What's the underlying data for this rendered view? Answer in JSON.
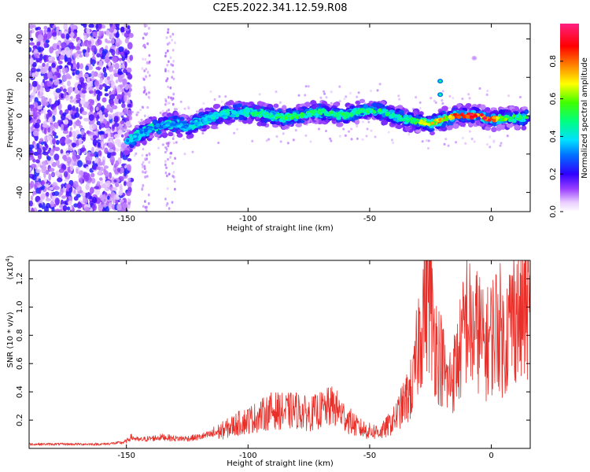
{
  "title": "C2E5.2022.341.12.59.R08",
  "chart_data": [
    {
      "type": "heatmap",
      "xlabel": "Height of straight line (km)",
      "ylabel": "Frequency (Hz)",
      "xlim": [
        -190,
        16
      ],
      "ylim": [
        -50,
        48
      ],
      "xticks": [
        -150,
        -100,
        -50,
        0
      ],
      "yticks": [
        -40,
        -20,
        0,
        20,
        40
      ],
      "colorbar": {
        "label": "Normalized spectral amplitude",
        "range": [
          0.0,
          1.0
        ],
        "ticks": [
          0.0,
          0.2,
          0.4,
          0.6,
          0.8
        ],
        "colormap": "rainbow (white-purple-blue-cyan-green-yellow-red-pink)"
      },
      "ridge": {
        "x": [
          -150,
          -145,
          -140,
          -135,
          -130,
          -125,
          -120,
          -115,
          -110,
          -105,
          -100,
          -95,
          -90,
          -85,
          -80,
          -75,
          -70,
          -65,
          -60,
          -55,
          -50,
          -45,
          -40,
          -35,
          -30,
          -25,
          -20,
          -15,
          -10,
          -5,
          0,
          5,
          10,
          15
        ],
        "frequency": [
          -14,
          -10,
          -7,
          -5,
          -4,
          -6,
          -3,
          -1,
          1,
          2,
          2,
          1,
          0,
          -1,
          0,
          1,
          2,
          1,
          0,
          2,
          3,
          2,
          0,
          -2,
          -3,
          -4,
          -2,
          0,
          0,
          0,
          -2,
          -1,
          -1,
          -1
        ],
        "amplitude": [
          0.4,
          0.35,
          0.35,
          0.35,
          0.35,
          0.35,
          0.4,
          0.4,
          0.45,
          0.45,
          0.45,
          0.5,
          0.5,
          0.5,
          0.55,
          0.5,
          0.5,
          0.5,
          0.5,
          0.5,
          0.5,
          0.5,
          0.5,
          0.55,
          0.6,
          0.7,
          0.75,
          0.85,
          0.95,
          0.9,
          0.85,
          0.6,
          0.5,
          0.5
        ]
      },
      "noise_region_x": [
        -190,
        -150
      ],
      "side_features": [
        {
          "x": -21,
          "frequency": 18
        },
        {
          "x": -21,
          "frequency": 11
        },
        {
          "x": -7,
          "frequency": 30
        }
      ]
    },
    {
      "type": "line",
      "xlabel": "Height of straight line (km)",
      "ylabel": "SNR (10 * v/v)",
      "y_scale_label": "(x10",
      "y_scale_exponent": "4",
      "y_scale_suffix": ")",
      "xlim": [
        -190,
        16
      ],
      "ylim": [
        0,
        1.33
      ],
      "xticks": [
        -150,
        -100,
        -50,
        0
      ],
      "yticks": [
        0.2,
        0.4,
        0.6,
        0.8,
        1.0,
        1.2
      ],
      "series": [
        {
          "color": "#e8302a",
          "x": [
            -190,
            -180,
            -170,
            -160,
            -152,
            -150,
            -148,
            -145,
            -140,
            -135,
            -130,
            -125,
            -120,
            -115,
            -110,
            -105,
            -100,
            -95,
            -90,
            -85,
            -80,
            -75,
            -70,
            -65,
            -60,
            -55,
            -50,
            -45,
            -40,
            -35,
            -32,
            -30,
            -28,
            -26,
            -24,
            -22,
            -20,
            -18,
            -15,
            -12,
            -10,
            -8,
            -5,
            -3,
            0,
            3,
            5,
            8,
            10,
            12,
            14,
            16
          ],
          "values": [
            0.03,
            0.03,
            0.03,
            0.03,
            0.04,
            0.05,
            0.08,
            0.06,
            0.07,
            0.08,
            0.07,
            0.07,
            0.08,
            0.1,
            0.13,
            0.17,
            0.2,
            0.23,
            0.27,
            0.26,
            0.27,
            0.24,
            0.27,
            0.3,
            0.22,
            0.15,
            0.12,
            0.12,
            0.2,
            0.35,
            0.45,
            0.75,
            1.0,
            1.2,
            0.85,
            0.7,
            0.6,
            0.45,
            0.55,
            0.75,
            0.95,
            0.8,
            0.85,
            0.7,
            0.8,
            0.9,
            0.75,
            0.9,
            1.0,
            0.9,
            1.02,
            0.95
          ]
        }
      ]
    }
  ]
}
